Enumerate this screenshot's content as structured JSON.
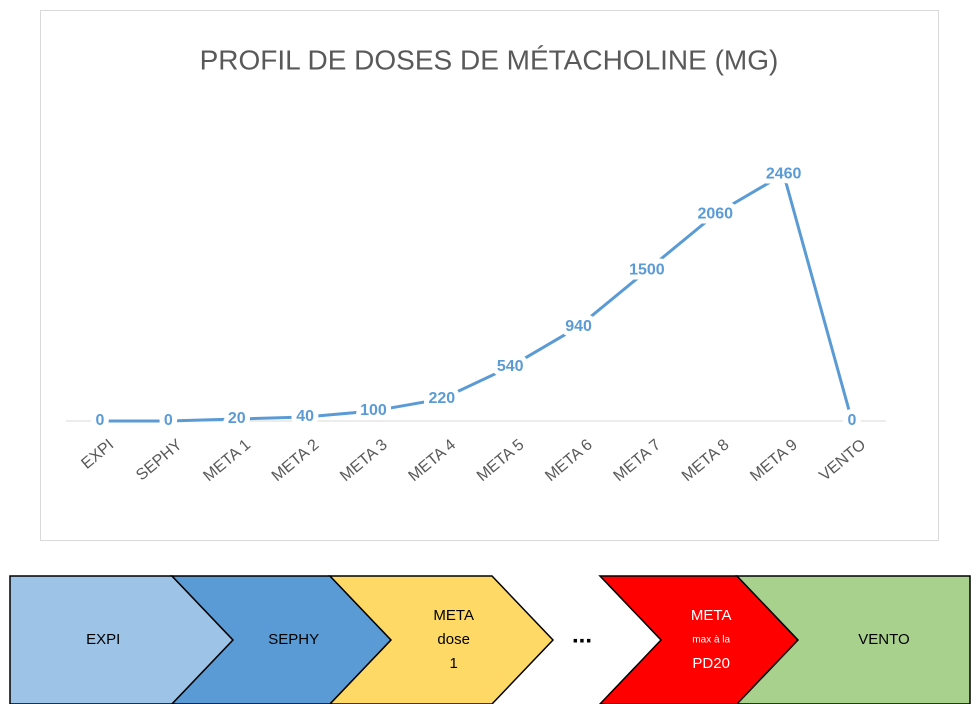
{
  "chart_data": {
    "type": "line",
    "title": "PROFIL DE DOSES DE MÉTACHOLINE (MG)",
    "categories": [
      "EXPI",
      "SEPHY",
      "META 1",
      "META 2",
      "META 3",
      "META 4",
      "META 5",
      "META 6",
      "META 7",
      "META 8",
      "META 9",
      "VENTO"
    ],
    "values": [
      0,
      0,
      20,
      40,
      100,
      220,
      540,
      940,
      1500,
      2060,
      2460,
      0
    ],
    "color": "#5b9bd5",
    "ylim": [
      0,
      2800
    ]
  },
  "process": {
    "steps": [
      {
        "lines": [
          "EXPI"
        ],
        "color": "#9dc3e6"
      },
      {
        "lines": [
          "SEPHY"
        ],
        "color": "#5b9bd5"
      },
      {
        "lines": [
          "META",
          "dose",
          "1"
        ],
        "color": "#ffd966"
      },
      {
        "lines": [
          "META",
          "max à la",
          "PD20"
        ],
        "color": "#ff0000"
      },
      {
        "lines": [
          "VENTO"
        ],
        "color": "#a9d18e"
      }
    ],
    "ellipsis": "..."
  }
}
